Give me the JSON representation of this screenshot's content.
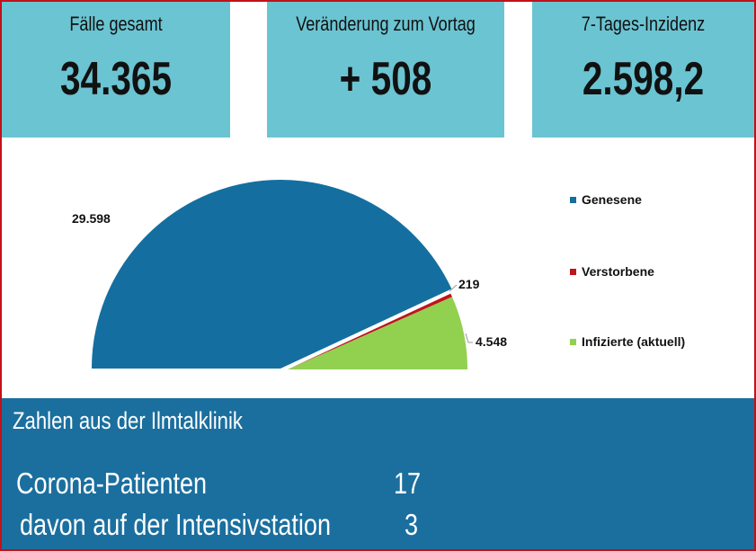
{
  "kpis": [
    {
      "title": "Fälle gesamt",
      "value": "34.365"
    },
    {
      "title": "Veränderung zum Vortag",
      "value": "+ 508"
    },
    {
      "title": "7-Tages-Inzidenz",
      "value": "2.598,2"
    }
  ],
  "chart_data": {
    "type": "pie",
    "subtype": "half-pie",
    "categories": [
      "Genesene",
      "Verstorbene",
      "Infizierte (aktuell)"
    ],
    "values": [
      29598,
      219,
      4548
    ],
    "data_labels": [
      "29.598",
      "219",
      "4.548"
    ],
    "colors": [
      "#146fa0",
      "#c0141e",
      "#92d050"
    ],
    "legend_position": "right"
  },
  "clinic": {
    "title": "Zahlen aus der Ilmtalklinik",
    "rows": [
      {
        "label": "Corona-Patienten",
        "value": "17"
      },
      {
        "label": "davon auf der Intensivstation",
        "value": "3"
      }
    ]
  }
}
